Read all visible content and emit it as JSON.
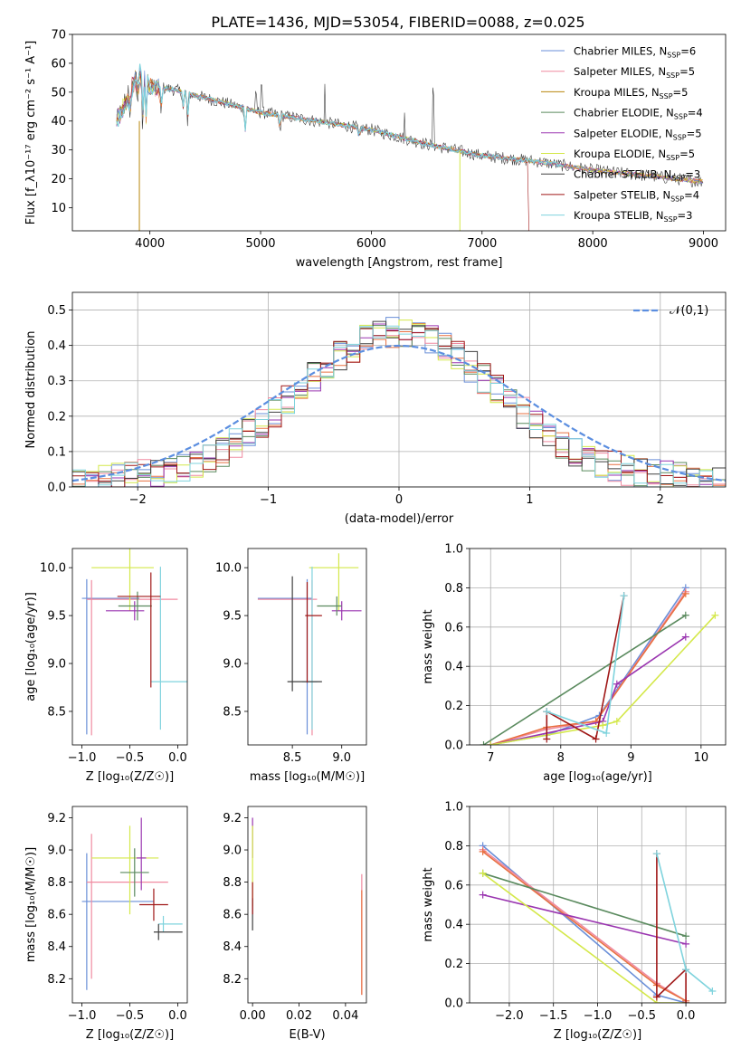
{
  "figure_title": "PLATE=1436, MJD=53054, FIBERID=0088, z=0.025",
  "colors": {
    "Chabrier MILES": "#6a8fd8",
    "Salpeter MILES": "#f08aa0",
    "Kroupa MILES": "#b8860b",
    "Chabrier ELODIE": "#5a8a5e",
    "Salpeter ELODIE": "#9a35b0",
    "Kroupa ELODIE": "#d4e84a",
    "Chabrier STELIB": "#404040",
    "Salpeter STELIB": "#a01818",
    "Kroupa STELIB": "#7fd3dd",
    "orange": "#e87040",
    "gaussian": "#5b8ee0"
  },
  "chart_data": [
    {
      "id": "spectrum",
      "type": "line",
      "xlabel": "wavelength [Angstrom, rest frame]",
      "ylabel": "Flux [f_λ10⁻¹⁷ erg cm⁻² s⁻¹ A⁻¹]",
      "xlim": [
        3300,
        9200
      ],
      "ylim": [
        2,
        70
      ],
      "xticks": [
        4000,
        5000,
        6000,
        7000,
        8000,
        9000
      ],
      "yticks": [
        10,
        20,
        30,
        40,
        50,
        60,
        70
      ],
      "legend_position": "top-right",
      "legend": [
        {
          "name": "Chabrier MILES",
          "nssp": "6"
        },
        {
          "name": "Salpeter MILES",
          "nssp": "5"
        },
        {
          "name": "Kroupa MILES",
          "nssp": "5"
        },
        {
          "name": "Chabrier ELODIE",
          "nssp": "4"
        },
        {
          "name": "Salpeter ELODIE",
          "nssp": "5"
        },
        {
          "name": "Kroupa ELODIE",
          "nssp": "5"
        },
        {
          "name": "Chabrier STELIB",
          "nssp": "3"
        },
        {
          "name": "Salpeter STELIB",
          "nssp": "4"
        },
        {
          "name": "Kroupa STELIB",
          "nssp": "3"
        }
      ],
      "continuum": [
        [
          3700,
          40
        ],
        [
          3800,
          48
        ],
        [
          3900,
          57
        ],
        [
          4000,
          52
        ],
        [
          4200,
          51
        ],
        [
          4500,
          48
        ],
        [
          4800,
          45
        ],
        [
          5000,
          43
        ],
        [
          5500,
          40
        ],
        [
          6000,
          37
        ],
        [
          6500,
          32
        ],
        [
          7000,
          28
        ],
        [
          7500,
          26
        ],
        [
          8000,
          23
        ],
        [
          8500,
          21
        ],
        [
          9000,
          19
        ]
      ]
    },
    {
      "id": "residuals",
      "type": "histogram",
      "xlabel": "(data-model)/error",
      "ylabel": "Normed distribution",
      "xlim": [
        -2.5,
        2.5
      ],
      "ylim": [
        0,
        0.55
      ],
      "xticks": [
        -2,
        -1,
        0,
        1,
        2
      ],
      "yticks": [
        0.0,
        0.1,
        0.2,
        0.3,
        0.4,
        0.5
      ],
      "grid": true,
      "legend_label": "𝒩(0,1)",
      "legend_position": "top-right",
      "bin_edges_start": -2.5,
      "bin_width": 0.1
    },
    {
      "id": "age-vs-Z",
      "type": "errorbar",
      "xlabel": "Z [log₁₀(Z/Z☉)]",
      "ylabel": "age  [log₁₀(age/yr)]",
      "xlim": [
        -1.1,
        0.1
      ],
      "ylim": [
        8.15,
        10.2
      ],
      "xticks": [
        -1.0,
        -0.5,
        0.0
      ],
      "yticks": [
        8.5,
        9.0,
        9.5,
        10.0
      ],
      "points": [
        {
          "model": "Chabrier MILES",
          "x": -0.95,
          "xerr": [
            0.05,
            0.55
          ],
          "y": 9.68,
          "yerr": [
            1.42,
            0.2
          ]
        },
        {
          "model": "Salpeter MILES",
          "x": -0.9,
          "xerr": [
            0.05,
            0.9
          ],
          "y": 9.67,
          "yerr": [
            1.42,
            0.2
          ]
        },
        {
          "model": "Kroupa ELODIE",
          "x": -0.5,
          "xerr": [
            0.4,
            0.25
          ],
          "y": 10.0,
          "yerr": [
            0.45,
            0.2
          ]
        },
        {
          "model": "Salpeter ELODIE",
          "x": -0.45,
          "xerr": [
            0.3,
            0.1
          ],
          "y": 9.55,
          "yerr": [
            0.1,
            0.1
          ]
        },
        {
          "model": "Chabrier ELODIE",
          "x": -0.42,
          "xerr": [
            0.2,
            0.15
          ],
          "y": 9.6,
          "yerr": [
            0.15,
            0.15
          ]
        },
        {
          "model": "Kroupa STELIB",
          "x": -0.18,
          "xerr": [
            0.1,
            0.28
          ],
          "y": 8.81,
          "yerr": [
            0.5,
            1.2
          ]
        },
        {
          "model": "Salpeter STELIB",
          "x": -0.28,
          "xerr": [
            0.35,
            0.1
          ],
          "y": 9.7,
          "yerr": [
            0.95,
            0.25
          ]
        }
      ]
    },
    {
      "id": "age-vs-mass",
      "type": "errorbar",
      "xlabel": "mass [log₁₀(M/M☉)]",
      "ylabel": "",
      "xlim": [
        8.05,
        9.25
      ],
      "ylim": [
        8.15,
        10.2
      ],
      "xticks": [
        8.5,
        9.0
      ],
      "yticks": [
        8.5,
        9.0,
        9.5,
        10.0
      ],
      "points": [
        {
          "model": "Chabrier MILES",
          "x": 8.65,
          "xerr": [
            0.5,
            0.05
          ],
          "y": 9.68,
          "yerr": [
            1.42,
            0.2
          ]
        },
        {
          "model": "Salpeter MILES",
          "x": 8.7,
          "xerr": [
            0.55,
            0.05
          ],
          "y": 9.67,
          "yerr": [
            1.42,
            0.2
          ]
        },
        {
          "model": "Kroupa ELODIE",
          "x": 8.97,
          "xerr": [
            0.3,
            0.2
          ],
          "y": 10.0,
          "yerr": [
            0.45,
            0.15
          ]
        },
        {
          "model": "Salpeter ELODIE",
          "x": 9.0,
          "xerr": [
            0.1,
            0.2
          ],
          "y": 9.55,
          "yerr": [
            0.1,
            0.1
          ]
        },
        {
          "model": "Chabrier ELODIE",
          "x": 8.95,
          "xerr": [
            0.2,
            0.05
          ],
          "y": 9.6,
          "yerr": [
            0.1,
            0.1
          ]
        },
        {
          "model": "Kroupa STELIB",
          "x": 8.7,
          "xerr": [
            0.1,
            0.05
          ],
          "y": 8.81,
          "yerr": [
            0.5,
            1.2
          ]
        },
        {
          "model": "Chabrier STELIB",
          "x": 8.5,
          "xerr": [
            0.05,
            0.3
          ],
          "y": 8.81,
          "yerr": [
            0.1,
            1.1
          ]
        },
        {
          "model": "Salpeter STELIB",
          "x": 8.65,
          "xerr": [
            0.02,
            0.15
          ],
          "y": 9.5,
          "yerr": [
            0.7,
            0.35
          ]
        }
      ]
    },
    {
      "id": "weight-vs-age",
      "type": "line",
      "xlabel": "age  [log₁₀(age/yr)]",
      "ylabel": "mass weight",
      "xlim": [
        6.7,
        10.35
      ],
      "ylim": [
        0,
        1.0
      ],
      "xticks": [
        7,
        8,
        9,
        10
      ],
      "yticks": [
        0.0,
        0.2,
        0.4,
        0.6,
        0.8,
        1.0
      ],
      "grid": true,
      "series": [
        {
          "model": "Chabrier MILES",
          "x": [
            7.0,
            7.8,
            8.55,
            9.78
          ],
          "y": [
            0.0,
            0.05,
            0.15,
            0.8
          ]
        },
        {
          "model": "Salpeter MILES",
          "x": [
            7.0,
            7.8,
            8.5,
            9.78
          ],
          "y": [
            0.0,
            0.08,
            0.12,
            0.78
          ]
        },
        {
          "model": "orange",
          "x": [
            7.0,
            7.8,
            8.5,
            9.78
          ],
          "y": [
            0.0,
            0.09,
            0.12,
            0.77
          ]
        },
        {
          "model": "Chabrier ELODIE",
          "x": [
            6.9,
            9.78
          ],
          "y": [
            0.0,
            0.66
          ]
        },
        {
          "model": "Salpeter ELODIE",
          "x": [
            7.0,
            8.6,
            8.8,
            9.78
          ],
          "y": [
            0.0,
            0.12,
            0.31,
            0.55
          ]
        },
        {
          "model": "Kroupa ELODIE",
          "x": [
            7.0,
            8.6,
            8.8,
            10.2
          ],
          "y": [
            0.0,
            0.1,
            0.12,
            0.66
          ]
        },
        {
          "model": "Salpeter STELIB",
          "x": [
            7.8,
            7.8,
            8.5,
            8.9
          ],
          "y": [
            0.03,
            0.17,
            0.03,
            0.76
          ]
        },
        {
          "model": "Kroupa STELIB",
          "x": [
            7.8,
            8.65,
            8.9
          ],
          "y": [
            0.17,
            0.06,
            0.76
          ]
        }
      ]
    },
    {
      "id": "mass-vs-Z",
      "type": "errorbar",
      "xlabel": "Z [log₁₀(Z/Z☉)]",
      "ylabel": "mass [log₁₀(M/M☉)]",
      "xlim": [
        -1.1,
        0.1
      ],
      "ylim": [
        8.05,
        9.27
      ],
      "xticks": [
        -1.0,
        -0.5,
        0.0
      ],
      "yticks": [
        8.2,
        8.4,
        8.6,
        8.8,
        9.0,
        9.2
      ],
      "points": [
        {
          "model": "Chabrier MILES",
          "x": -0.95,
          "xerr": [
            0.05,
            0.7
          ],
          "y": 8.68,
          "yerr": [
            0.55,
            0.3
          ]
        },
        {
          "model": "Salpeter MILES",
          "x": -0.9,
          "xerr": [
            0.05,
            0.8
          ],
          "y": 8.8,
          "yerr": [
            0.6,
            0.3
          ]
        },
        {
          "model": "Kroupa ELODIE",
          "x": -0.5,
          "xerr": [
            0.4,
            0.3
          ],
          "y": 8.95,
          "yerr": [
            0.35,
            0.2
          ]
        },
        {
          "model": "Salpeter ELODIE",
          "x": -0.38,
          "xerr": [
            0.05,
            0.05
          ],
          "y": 8.95,
          "yerr": [
            0.2,
            0.25
          ]
        },
        {
          "model": "Chabrier ELODIE",
          "x": -0.45,
          "xerr": [
            0.15,
            0.15
          ],
          "y": 8.86,
          "yerr": [
            0.15,
            0.15
          ]
        },
        {
          "model": "Kroupa STELIB",
          "x": -0.15,
          "xerr": [
            0.05,
            0.2
          ],
          "y": 8.54,
          "yerr": [
            0.05,
            0.05
          ]
        },
        {
          "model": "Chabrier STELIB",
          "x": -0.2,
          "xerr": [
            0.05,
            0.25
          ],
          "y": 8.49,
          "yerr": [
            0.05,
            0.05
          ]
        },
        {
          "model": "Salpeter STELIB",
          "x": -0.25,
          "xerr": [
            0.15,
            0.15
          ],
          "y": 8.66,
          "yerr": [
            0.1,
            0.1
          ]
        }
      ]
    },
    {
      "id": "mass-vs-EBV",
      "type": "errorbar",
      "xlabel": "E(B-V)",
      "ylabel": "",
      "xlim": [
        -0.002,
        0.049
      ],
      "ylim": [
        8.05,
        9.27
      ],
      "xticks": [
        0.0,
        0.02,
        0.04
      ],
      "yticks": [
        8.2,
        8.4,
        8.6,
        8.8,
        9.0,
        9.2
      ],
      "points": [
        {
          "model": "Salpeter ELODIE",
          "x": 0.0,
          "y": 9.1,
          "yerr": [
            0.15,
            0.1
          ]
        },
        {
          "model": "Kroupa ELODIE",
          "x": 0.0,
          "y": 8.95,
          "yerr": [
            0.3,
            0.2
          ]
        },
        {
          "model": "Chabrier STELIB",
          "x": 0.0,
          "y": 8.6,
          "yerr": [
            0.1,
            0.1
          ]
        },
        {
          "model": "Salpeter STELIB",
          "x": 0.0,
          "y": 8.7,
          "yerr": [
            0.1,
            0.1
          ]
        },
        {
          "model": "Salpeter MILES",
          "x": 0.047,
          "y": 8.5,
          "yerr": [
            0.4,
            0.35
          ]
        },
        {
          "model": "orange",
          "x": 0.047,
          "y": 8.45,
          "yerr": [
            0.35,
            0.3
          ]
        }
      ]
    },
    {
      "id": "weight-vs-Z",
      "type": "line",
      "xlabel": "Z [log₁₀(Z/Z☉)]",
      "ylabel": "mass weight",
      "xlim": [
        -2.45,
        0.45
      ],
      "ylim": [
        0,
        1.0
      ],
      "xticks": [
        -2.0,
        -1.5,
        -1.0,
        -0.5,
        0.0
      ],
      "yticks": [
        0.0,
        0.2,
        0.4,
        0.6,
        0.8,
        1.0
      ],
      "grid": true,
      "series": [
        {
          "model": "Chabrier MILES",
          "x": [
            -2.3,
            -0.33,
            0.0
          ],
          "y": [
            0.8,
            0.04,
            0.0
          ]
        },
        {
          "model": "Salpeter MILES",
          "x": [
            -2.3,
            -0.33,
            0.0
          ],
          "y": [
            0.78,
            0.1,
            0.01
          ]
        },
        {
          "model": "orange",
          "x": [
            -2.3,
            -0.33,
            0.0
          ],
          "y": [
            0.77,
            0.09,
            0.01
          ]
        },
        {
          "model": "Chabrier ELODIE",
          "x": [
            -2.3,
            0.0
          ],
          "y": [
            0.66,
            0.34
          ]
        },
        {
          "model": "Salpeter ELODIE",
          "x": [
            -2.3,
            0.0
          ],
          "y": [
            0.55,
            0.3
          ]
        },
        {
          "model": "Kroupa ELODIE",
          "x": [
            -2.3,
            -0.33,
            0.0
          ],
          "y": [
            0.66,
            0.0,
            0.0
          ]
        },
        {
          "model": "Salpeter STELIB",
          "x": [
            -0.33,
            -0.33,
            0.0,
            0.0
          ],
          "y": [
            0.76,
            0.03,
            0.17,
            0.0
          ]
        },
        {
          "model": "Kroupa STELIB",
          "x": [
            -0.33,
            0.0,
            0.3
          ],
          "y": [
            0.76,
            0.17,
            0.06
          ]
        }
      ]
    }
  ]
}
